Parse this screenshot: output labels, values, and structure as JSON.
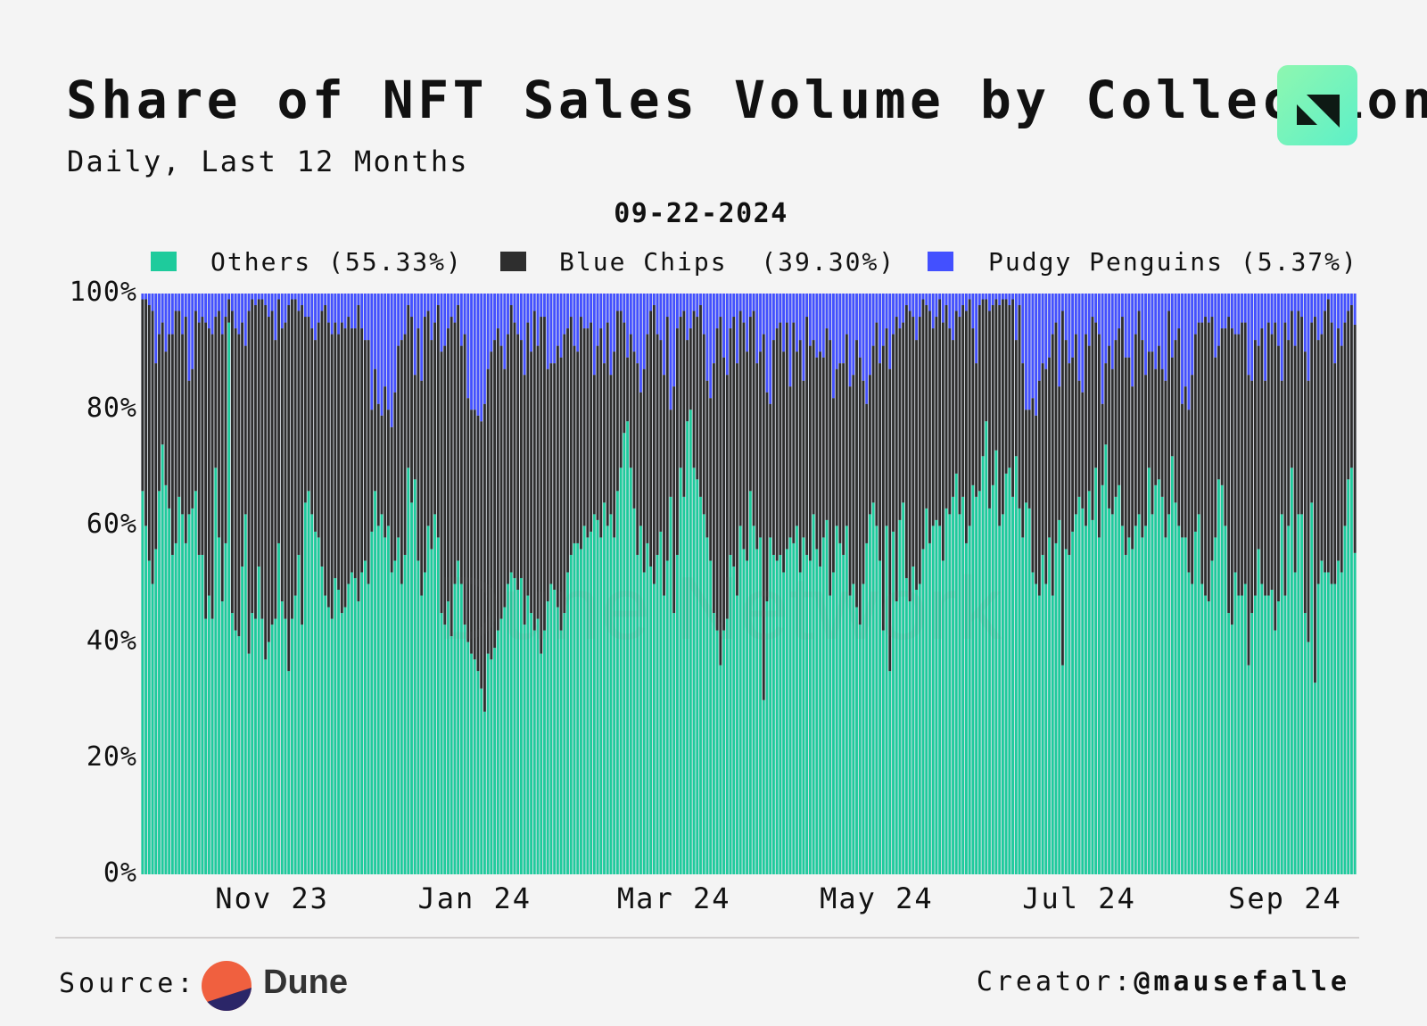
{
  "header": {
    "title": "Share of NFT Sales Volume by Collection",
    "subtitle": "Daily, Last 12 Months",
    "logo": "N-logo"
  },
  "hover_date": "09-22-2024",
  "legend": [
    {
      "label": "Others",
      "value": "(55.33%)",
      "color": "#1ecb9c"
    },
    {
      "label": "Blue Chips ",
      "value": "(39.30%)",
      "color": "#2e2e2e"
    },
    {
      "label": "Pudgy Penguins",
      "value": "(5.37%)",
      "color": "#4350ff"
    }
  ],
  "watermark": "Dune Network",
  "footer": {
    "source_label": "Source:",
    "source_name": "Dune",
    "creator_label": "Creator:",
    "creator_handle": "@mausefalle"
  },
  "chart_data": {
    "type": "bar",
    "stacked": true,
    "title": "Share of NFT Sales Volume by Collection",
    "subtitle": "Daily, Last 12 Months",
    "x_range": [
      "2023-09-23",
      "2024-09-22"
    ],
    "ylim": [
      0,
      100
    ],
    "y_ticks": [
      "0%",
      "20%",
      "40%",
      "60%",
      "80%",
      "100%"
    ],
    "x_ticks": [
      {
        "label": "Nov 23",
        "date": "2023-11-01"
      },
      {
        "label": "Jan 24",
        "date": "2024-01-01"
      },
      {
        "label": "Mar 24",
        "date": "2024-03-01"
      },
      {
        "label": "May 24",
        "date": "2024-05-01"
      },
      {
        "label": "Jul 24",
        "date": "2024-07-01"
      },
      {
        "label": "Sep 24",
        "date": "2024-09-01"
      }
    ],
    "grid": false,
    "legend_position": "top",
    "series": [
      {
        "name": "Others",
        "color": "#1ecb9c",
        "values": [
          66,
          60,
          54,
          50,
          56,
          66,
          74,
          67,
          63,
          55,
          57,
          65,
          62,
          57,
          62,
          63,
          66,
          55,
          55,
          44,
          48,
          44,
          70,
          58,
          47,
          57,
          95,
          45,
          42,
          41,
          53,
          62,
          38,
          45,
          44,
          53,
          44,
          37,
          40,
          43,
          44,
          57,
          47,
          44,
          35,
          44,
          48,
          55,
          43,
          64,
          66,
          62,
          59,
          58,
          53,
          48,
          46,
          44,
          51,
          49,
          45,
          46,
          50,
          52,
          51,
          47,
          52,
          54,
          50,
          59,
          66,
          60,
          62,
          58,
          60,
          52,
          54,
          58,
          50,
          55,
          70,
          64,
          68,
          54,
          48,
          52,
          60,
          56,
          62,
          58,
          45,
          43,
          47,
          41,
          50,
          54,
          50,
          43,
          40,
          38,
          37,
          35,
          32,
          28,
          38,
          37,
          39,
          42,
          44,
          46,
          50,
          52,
          51,
          49,
          51,
          43,
          48,
          45,
          42,
          44,
          38,
          42,
          47,
          50,
          49,
          46,
          42,
          45,
          52,
          55,
          57,
          57,
          56,
          60,
          58,
          59,
          62,
          61,
          58,
          64,
          60,
          62,
          58,
          66,
          70,
          76,
          78,
          70,
          63,
          55,
          60,
          52,
          57,
          53,
          50,
          55,
          59,
          48,
          54,
          65,
          45,
          55,
          70,
          65,
          78,
          80,
          70,
          68,
          65,
          62,
          58,
          54,
          45,
          42,
          36,
          42,
          44,
          55,
          53,
          48,
          60,
          56,
          54,
          66,
          60,
          56,
          58,
          30,
          47,
          58,
          55,
          54,
          55,
          52,
          56,
          58,
          57,
          60,
          52,
          58,
          55,
          54,
          62,
          56,
          53,
          58,
          61,
          48,
          52,
          60,
          57,
          55,
          60,
          48,
          50,
          46,
          43,
          50,
          57,
          62,
          64,
          60,
          54,
          42,
          60,
          35,
          59,
          47,
          61,
          64,
          51,
          47,
          53,
          49,
          50,
          56,
          63,
          57,
          60,
          61,
          60,
          54,
          63,
          62,
          65,
          69,
          62,
          65,
          57,
          60,
          67,
          65,
          66,
          72,
          78,
          63,
          67,
          73,
          60,
          62,
          69,
          70,
          65,
          72,
          63,
          58,
          64,
          63,
          52,
          50,
          48,
          55,
          50,
          58,
          48,
          57,
          61,
          36,
          56,
          55,
          59,
          62,
          65,
          63,
          60,
          66,
          61,
          70,
          58,
          67,
          74,
          63,
          62,
          65,
          67,
          60,
          55,
          58,
          56,
          60,
          62,
          58,
          60,
          70,
          62,
          67,
          68,
          65,
          58,
          62,
          72,
          64,
          60,
          58,
          58,
          52,
          50,
          59,
          62,
          50,
          48,
          47,
          54,
          58,
          68,
          67,
          60,
          45,
          43,
          52,
          48,
          48,
          50,
          36,
          45,
          48,
          56,
          50,
          48,
          48,
          49,
          42,
          47,
          62,
          48,
          60,
          70,
          52,
          62,
          62,
          45,
          40,
          64,
          33,
          50,
          54,
          52,
          52,
          50,
          50,
          54,
          52,
          60,
          68,
          70,
          55.33
        ]
      },
      {
        "name": "Blue Chips",
        "color": "#2e2e2e",
        "values": [
          33,
          39,
          44,
          47,
          32,
          27,
          21,
          23,
          30,
          38,
          40,
          32,
          31,
          39,
          23,
          24,
          31,
          40,
          41,
          51,
          46,
          49,
          26,
          39,
          46,
          39,
          4,
          52,
          52,
          52,
          42,
          29,
          59,
          54,
          54,
          46,
          55,
          61,
          56,
          54,
          48,
          42,
          47,
          51,
          63,
          55,
          51,
          42,
          55,
          32,
          30,
          32,
          33,
          37,
          44,
          50,
          49,
          49,
          44,
          44,
          50,
          48,
          46,
          42,
          43,
          51,
          42,
          38,
          42,
          21,
          21,
          21,
          17,
          26,
          20,
          25,
          29,
          33,
          42,
          38,
          28,
          32,
          18,
          40,
          37,
          44,
          37,
          36,
          33,
          40,
          45,
          48,
          47,
          55,
          45,
          44,
          41,
          50,
          42,
          42,
          43,
          44,
          46,
          53,
          49,
          53,
          53,
          52,
          47,
          41,
          43,
          46,
          44,
          44,
          41,
          43,
          47,
          45,
          55,
          47,
          58,
          54,
          40,
          38,
          39,
          45,
          47,
          48,
          42,
          41,
          34,
          33,
          40,
          34,
          36,
          36,
          24,
          30,
          36,
          24,
          35,
          24,
          32,
          31,
          27,
          19,
          11,
          23,
          27,
          33,
          23,
          35,
          36,
          44,
          48,
          38,
          33,
          38,
          42,
          15,
          39,
          39,
          26,
          32,
          14,
          14,
          27,
          28,
          33,
          31,
          27,
          28,
          43,
          52,
          60,
          47,
          42,
          39,
          43,
          40,
          37,
          39,
          36,
          30,
          37,
          32,
          32,
          63,
          36,
          23,
          37,
          40,
          40,
          38,
          39,
          26,
          38,
          30,
          40,
          27,
          41,
          37,
          30,
          33,
          37,
          31,
          33,
          44,
          30,
          27,
          31,
          33,
          33,
          36,
          36,
          46,
          46,
          35,
          24,
          24,
          27,
          35,
          34,
          49,
          34,
          52,
          34,
          49,
          33,
          31,
          47,
          50,
          43,
          43,
          46,
          43,
          35,
          40,
          34,
          35,
          39,
          41,
          35,
          32,
          27,
          28,
          34,
          33,
          40,
          39,
          27,
          23,
          32,
          27,
          21,
          34,
          31,
          26,
          38,
          37,
          30,
          28,
          34,
          20,
          35,
          30,
          16,
          17,
          30,
          29,
          37,
          33,
          37,
          31,
          45,
          38,
          23,
          61,
          36,
          33,
          30,
          31,
          20,
          20,
          33,
          25,
          35,
          25,
          35,
          14,
          14,
          28,
          25,
          27,
          27,
          36,
          34,
          31,
          28,
          33,
          35,
          34,
          26,
          20,
          28,
          20,
          23,
          22,
          27,
          35,
          17,
          28,
          34,
          23,
          26,
          28,
          36,
          34,
          33,
          45,
          48,
          48,
          42,
          31,
          23,
          27,
          34,
          51,
          51,
          41,
          45,
          47,
          45,
          50,
          40,
          44,
          35,
          44,
          37,
          47,
          44,
          53,
          44,
          23,
          47,
          32,
          27,
          39,
          35,
          34,
          45,
          45,
          31,
          63,
          42,
          39,
          45,
          47,
          45,
          38,
          40,
          39,
          35,
          29,
          28,
          39.3
        ]
      },
      {
        "name": "Pudgy Penguins",
        "color": "#4350ff",
        "values": [
          1,
          1,
          2,
          3,
          12,
          7,
          5,
          10,
          7,
          7,
          3,
          3,
          7,
          4,
          15,
          13,
          3,
          5,
          4,
          5,
          6,
          7,
          4,
          3,
          7,
          4,
          1,
          3,
          6,
          7,
          5,
          9,
          3,
          1,
          2,
          1,
          1,
          2,
          4,
          3,
          8,
          1,
          6,
          5,
          2,
          1,
          1,
          3,
          2,
          4,
          4,
          6,
          8,
          5,
          3,
          2,
          5,
          7,
          5,
          7,
          5,
          6,
          4,
          6,
          6,
          2,
          6,
          8,
          8,
          20,
          13,
          19,
          21,
          16,
          20,
          23,
          17,
          9,
          8,
          7,
          2,
          4,
          14,
          6,
          15,
          4,
          3,
          8,
          5,
          2,
          10,
          9,
          6,
          4,
          5,
          2,
          9,
          7,
          18,
          20,
          20,
          21,
          22,
          19,
          13,
          10,
          8,
          6,
          9,
          13,
          7,
          2,
          5,
          7,
          8,
          14,
          5,
          10,
          3,
          9,
          4,
          4,
          13,
          12,
          12,
          9,
          11,
          7,
          6,
          4,
          9,
          10,
          4,
          6,
          6,
          5,
          14,
          9,
          6,
          12,
          5,
          14,
          10,
          3,
          3,
          5,
          11,
          7,
          10,
          12,
          17,
          13,
          7,
          3,
          2,
          7,
          8,
          14,
          4,
          20,
          16,
          6,
          4,
          3,
          8,
          6,
          3,
          4,
          2,
          7,
          15,
          18,
          12,
          6,
          4,
          11,
          14,
          6,
          4,
          12,
          3,
          5,
          10,
          4,
          3,
          12,
          10,
          7,
          17,
          19,
          8,
          6,
          5,
          10,
          5,
          16,
          5,
          10,
          8,
          15,
          4,
          9,
          8,
          11,
          10,
          11,
          6,
          8,
          18,
          13,
          12,
          12,
          7,
          16,
          14,
          8,
          11,
          15,
          19,
          14,
          9,
          5,
          12,
          9,
          6,
          13,
          7,
          4,
          6,
          5,
          2,
          3,
          4,
          8,
          4,
          1,
          2,
          3,
          6,
          4,
          1,
          5,
          2,
          6,
          8,
          3,
          4,
          2,
          3,
          1,
          6,
          12,
          2,
          1,
          1,
          3,
          2,
          1,
          2,
          1,
          1,
          2,
          1,
          8,
          2,
          12,
          20,
          20,
          18,
          21,
          15,
          12,
          13,
          11,
          7,
          5,
          16,
          3,
          8,
          12,
          11,
          7,
          15,
          17,
          7,
          9,
          4,
          5,
          7,
          19,
          12,
          9,
          13,
          8,
          6,
          4,
          11,
          11,
          16,
          7,
          3,
          8,
          14,
          10,
          10,
          13,
          9,
          13,
          15,
          3,
          11,
          8,
          6,
          19,
          16,
          20,
          14,
          7,
          5,
          5,
          4,
          5,
          4,
          11,
          9,
          6,
          6,
          4,
          6,
          7,
          7,
          5,
          5,
          14,
          15,
          8,
          9,
          6,
          15,
          5,
          7,
          5,
          9,
          15,
          5,
          8,
          3,
          9,
          3,
          4,
          10,
          15,
          5,
          4,
          8,
          7,
          3,
          1,
          5,
          12,
          6,
          9,
          5,
          3,
          2,
          5.37
        ]
      }
    ]
  }
}
